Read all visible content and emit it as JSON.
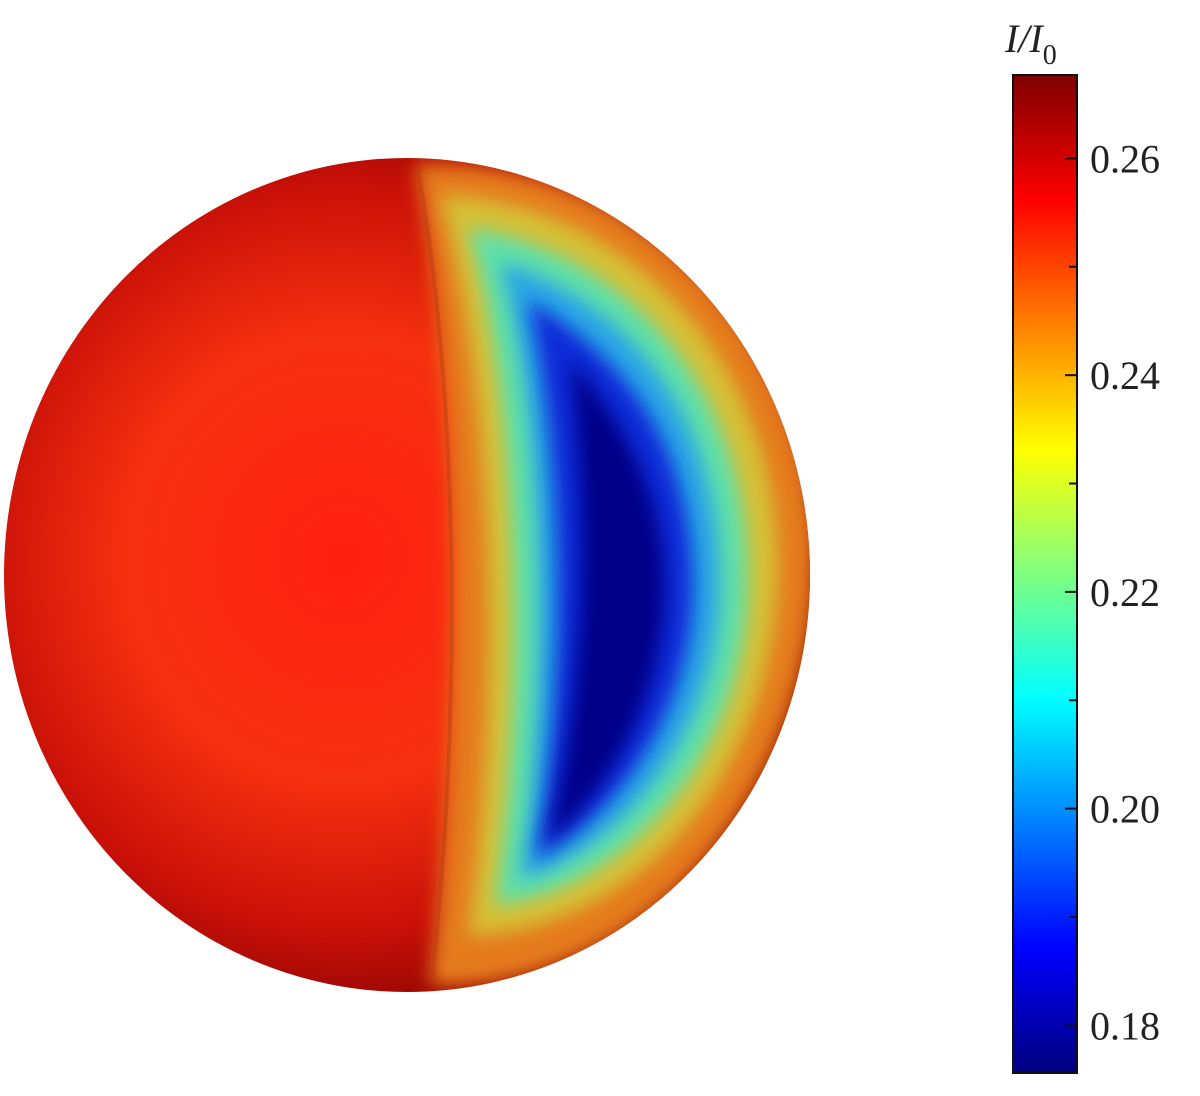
{
  "chart_data": {
    "type": "heatmap",
    "title": "",
    "colorbar": {
      "label": "I/I",
      "label_subscript": "0",
      "colormap": "jet",
      "range": [
        0.1756,
        0.2677
      ],
      "ticks": [
        0.26,
        0.24,
        0.22,
        0.2,
        0.18
      ],
      "tick_labels": [
        "0.26",
        "0.24",
        "0.22",
        "0.20",
        "0.18"
      ],
      "minor_ticks": [
        0.25,
        0.23,
        0.21,
        0.19
      ]
    },
    "surface": {
      "shape": "sphere",
      "bright_side_value": 0.262,
      "edge_value": 0.267,
      "dark_crescent_min_value": 0.176,
      "dark_crescent_side": "right"
    }
  }
}
